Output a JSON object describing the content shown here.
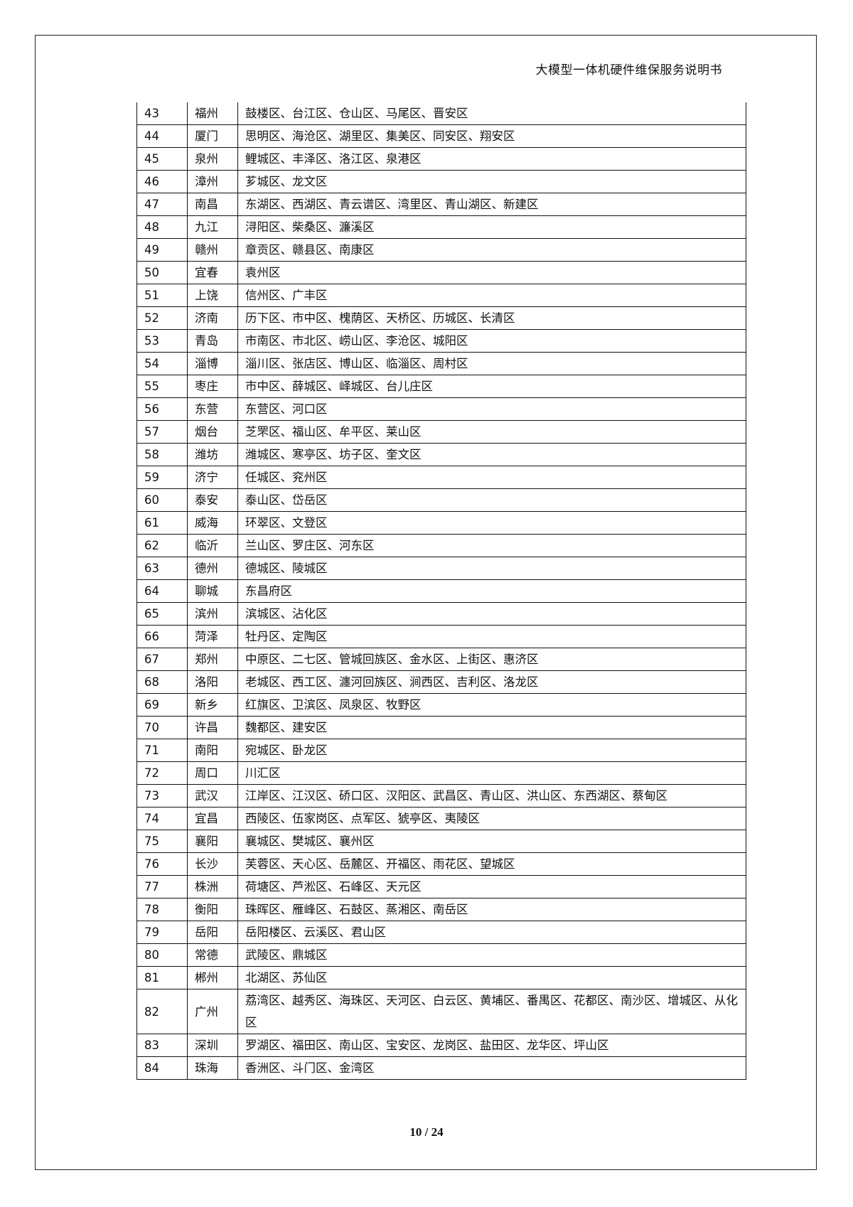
{
  "header": {
    "title": "大模型一体机硬件维保服务说明书"
  },
  "table": {
    "rows": [
      {
        "no": "43",
        "city": "福州",
        "districts": "鼓楼区、台江区、仓山区、马尾区、晋安区"
      },
      {
        "no": "44",
        "city": "厦门",
        "districts": "思明区、海沧区、湖里区、集美区、同安区、翔安区"
      },
      {
        "no": "45",
        "city": "泉州",
        "districts": "鲤城区、丰泽区、洛江区、泉港区"
      },
      {
        "no": "46",
        "city": "漳州",
        "districts": "芗城区、龙文区"
      },
      {
        "no": "47",
        "city": "南昌",
        "districts": "东湖区、西湖区、青云谱区、湾里区、青山湖区、新建区"
      },
      {
        "no": "48",
        "city": "九江",
        "districts": "浔阳区、柴桑区、濂溪区"
      },
      {
        "no": "49",
        "city": "赣州",
        "districts": "章贡区、赣县区、南康区"
      },
      {
        "no": "50",
        "city": "宜春",
        "districts": "袁州区"
      },
      {
        "no": "51",
        "city": "上饶",
        "districts": "信州区、广丰区"
      },
      {
        "no": "52",
        "city": "济南",
        "districts": "历下区、市中区、槐荫区、天桥区、历城区、长清区"
      },
      {
        "no": "53",
        "city": "青岛",
        "districts": "市南区、市北区、崂山区、李沧区、城阳区"
      },
      {
        "no": "54",
        "city": "淄博",
        "districts": "淄川区、张店区、博山区、临淄区、周村区"
      },
      {
        "no": "55",
        "city": "枣庄",
        "districts": "市中区、薛城区、峄城区、台儿庄区"
      },
      {
        "no": "56",
        "city": "东营",
        "districts": "东营区、河口区"
      },
      {
        "no": "57",
        "city": "烟台",
        "districts": "芝罘区、福山区、牟平区、莱山区"
      },
      {
        "no": "58",
        "city": "潍坊",
        "districts": "潍城区、寒亭区、坊子区、奎文区"
      },
      {
        "no": "59",
        "city": "济宁",
        "districts": "任城区、兖州区"
      },
      {
        "no": "60",
        "city": "泰安",
        "districts": "泰山区、岱岳区"
      },
      {
        "no": "61",
        "city": "威海",
        "districts": "环翠区、文登区"
      },
      {
        "no": "62",
        "city": "临沂",
        "districts": "兰山区、罗庄区、河东区"
      },
      {
        "no": "63",
        "city": "德州",
        "districts": "德城区、陵城区"
      },
      {
        "no": "64",
        "city": "聊城",
        "districts": "东昌府区"
      },
      {
        "no": "65",
        "city": "滨州",
        "districts": "滨城区、沾化区"
      },
      {
        "no": "66",
        "city": "菏泽",
        "districts": "牡丹区、定陶区"
      },
      {
        "no": "67",
        "city": "郑州",
        "districts": "中原区、二七区、管城回族区、金水区、上街区、惠济区"
      },
      {
        "no": "68",
        "city": "洛阳",
        "districts": "老城区、西工区、瀍河回族区、涧西区、吉利区、洛龙区"
      },
      {
        "no": "69",
        "city": "新乡",
        "districts": "红旗区、卫滨区、凤泉区、牧野区"
      },
      {
        "no": "70",
        "city": "许昌",
        "districts": "魏都区、建安区"
      },
      {
        "no": "71",
        "city": "南阳",
        "districts": "宛城区、卧龙区"
      },
      {
        "no": "72",
        "city": "周口",
        "districts": "川汇区"
      },
      {
        "no": "73",
        "city": "武汉",
        "districts": "江岸区、江汉区、硚口区、汉阳区、武昌区、青山区、洪山区、东西湖区、蔡甸区"
      },
      {
        "no": "74",
        "city": "宜昌",
        "districts": "西陵区、伍家岗区、点军区、猇亭区、夷陵区"
      },
      {
        "no": "75",
        "city": "襄阳",
        "districts": "襄城区、樊城区、襄州区"
      },
      {
        "no": "76",
        "city": "长沙",
        "districts": "芙蓉区、天心区、岳麓区、开福区、雨花区、望城区"
      },
      {
        "no": "77",
        "city": "株洲",
        "districts": "荷塘区、芦淞区、石峰区、天元区"
      },
      {
        "no": "78",
        "city": "衡阳",
        "districts": "珠晖区、雁峰区、石鼓区、蒸湘区、南岳区"
      },
      {
        "no": "79",
        "city": "岳阳",
        "districts": "岳阳楼区、云溪区、君山区"
      },
      {
        "no": "80",
        "city": "常德",
        "districts": "武陵区、鼎城区"
      },
      {
        "no": "81",
        "city": "郴州",
        "districts": "北湖区、苏仙区"
      },
      {
        "no": "82",
        "city": "广州",
        "districts": "荔湾区、越秀区、海珠区、天河区、白云区、黄埔区、番禺区、花都区、南沙区、增城区、从化区"
      },
      {
        "no": "83",
        "city": "深圳",
        "districts": "罗湖区、福田区、南山区、宝安区、龙岗区、盐田区、龙华区、坪山区"
      },
      {
        "no": "84",
        "city": "珠海",
        "districts": "香洲区、斗门区、金湾区"
      }
    ]
  },
  "footer": {
    "page_number": "10 / 24"
  }
}
